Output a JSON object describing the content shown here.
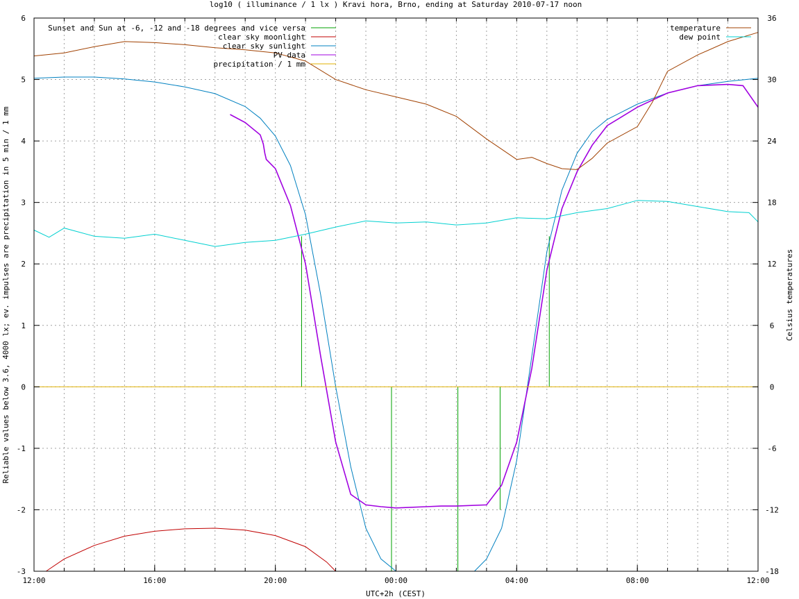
{
  "chart_data": {
    "type": "line",
    "title": "log10 ( illuminance / 1 lx ) Kravi hora, Brno, ending at Saturday 2010-07-17 noon",
    "xlabel": "UTC+2h (CEST)",
    "ylabel": "Reliable values below 3.6, 4000 lx; ev. impulses are precipitation in 5 min / 1 mm",
    "y2label": "Celsius temperatures",
    "xlim": [
      0,
      24
    ],
    "ylim": [
      -3,
      6
    ],
    "y2lim": [
      -18,
      36
    ],
    "x_ticks": [
      {
        "v": 0,
        "label": "12:00"
      },
      {
        "v": 4,
        "label": "16:00"
      },
      {
        "v": 8,
        "label": "20:00"
      },
      {
        "v": 12,
        "label": "00:00"
      },
      {
        "v": 16,
        "label": "04:00"
      },
      {
        "v": 20,
        "label": "08:00"
      },
      {
        "v": 24,
        "label": "12:00"
      }
    ],
    "y_ticks": [
      {
        "v": 6,
        "label": "6"
      },
      {
        "v": 5,
        "label": "5"
      },
      {
        "v": 4,
        "label": "4"
      },
      {
        "v": 3,
        "label": "3"
      },
      {
        "v": 2,
        "label": "2"
      },
      {
        "v": 1,
        "label": "1"
      },
      {
        "v": 0,
        "label": "0"
      },
      {
        "v": -1,
        "label": "-1"
      },
      {
        "v": -2,
        "label": "-2"
      },
      {
        "v": -3,
        "label": "-3"
      }
    ],
    "y2_ticks": [
      {
        "v": 36,
        "label": "36"
      },
      {
        "v": 30,
        "label": "30"
      },
      {
        "v": 24,
        "label": "24"
      },
      {
        "v": 18,
        "label": "18"
      },
      {
        "v": 12,
        "label": "12"
      },
      {
        "v": 6,
        "label": "6"
      },
      {
        "v": 0,
        "label": "0"
      },
      {
        "v": -6,
        "label": "-6"
      },
      {
        "v": -12,
        "label": "-12"
      },
      {
        "v": -18,
        "label": "-18"
      }
    ],
    "grid": true,
    "legend_left": [
      {
        "name": "Sunset and Sun at -6, -12 and -18 degrees and vice versa",
        "color": "#00a000"
      },
      {
        "name": "clear sky moonlight",
        "color": "#c00000"
      },
      {
        "name": "clear sky sunlight",
        "color": "#0080c0"
      },
      {
        "name": "PV data",
        "color": "#a000e0"
      },
      {
        "name": "precipitation / 1 mm",
        "color": "#e0b000"
      }
    ],
    "legend_right": [
      {
        "name": "temperature",
        "color": "#a04000"
      },
      {
        "name": "dew point",
        "color": "#00d0d0"
      }
    ],
    "series": [
      {
        "name": "Sunset and Sun at -6, -12 and -18 degrees and vice versa",
        "color": "#00a000",
        "axis": "y1",
        "type": "impulse",
        "points": [
          [
            8.87,
            2.45
          ],
          [
            9.57,
            0
          ],
          [
            10.45,
            0
          ],
          [
            11.85,
            -3
          ],
          [
            14.05,
            -3
          ],
          [
            15.45,
            -2
          ],
          [
            16.42,
            0
          ],
          [
            17.08,
            2.45
          ]
        ]
      },
      {
        "name": "clear sky moonlight",
        "color": "#c00000",
        "axis": "y1",
        "points": [
          [
            0.4,
            -3.0
          ],
          [
            1,
            -2.8
          ],
          [
            2,
            -2.58
          ],
          [
            3,
            -2.43
          ],
          [
            4,
            -2.35
          ],
          [
            5,
            -2.31
          ],
          [
            6,
            -2.3
          ],
          [
            7,
            -2.33
          ],
          [
            8,
            -2.42
          ],
          [
            9,
            -2.6
          ],
          [
            9.7,
            -2.85
          ],
          [
            10,
            -3.0
          ]
        ]
      },
      {
        "name": "clear sky sunlight",
        "color": "#0080c0",
        "axis": "y1",
        "points": [
          [
            0,
            5.02
          ],
          [
            1,
            5.04
          ],
          [
            2,
            5.04
          ],
          [
            3,
            5.01
          ],
          [
            4,
            4.96
          ],
          [
            5,
            4.88
          ],
          [
            6,
            4.77
          ],
          [
            7,
            4.56
          ],
          [
            7.5,
            4.37
          ],
          [
            8,
            4.08
          ],
          [
            8.5,
            3.6
          ],
          [
            9,
            2.8
          ],
          [
            9.5,
            1.5
          ],
          [
            10,
            0.0
          ],
          [
            10.5,
            -1.3
          ],
          [
            11,
            -2.3
          ],
          [
            11.5,
            -2.8
          ],
          [
            12,
            -3.0
          ],
          [
            14.6,
            -3.0
          ],
          [
            15,
            -2.8
          ],
          [
            15.5,
            -2.3
          ],
          [
            16,
            -1.2
          ],
          [
            16.5,
            0.5
          ],
          [
            17,
            2.2
          ],
          [
            17.5,
            3.2
          ],
          [
            18,
            3.8
          ],
          [
            18.5,
            4.15
          ],
          [
            19,
            4.35
          ],
          [
            20,
            4.6
          ],
          [
            21,
            4.78
          ],
          [
            22,
            4.9
          ],
          [
            23,
            4.97
          ],
          [
            24,
            5.02
          ]
        ]
      },
      {
        "name": "PV data",
        "color": "#a000e0",
        "axis": "y1",
        "points": [
          [
            6.5,
            4.43
          ],
          [
            7,
            4.3
          ],
          [
            7.5,
            4.1
          ],
          [
            7.6,
            3.95
          ],
          [
            7.65,
            3.8
          ],
          [
            7.7,
            3.7
          ],
          [
            8,
            3.55
          ],
          [
            8.5,
            2.95
          ],
          [
            9,
            2.0
          ],
          [
            9.5,
            0.5
          ],
          [
            10,
            -0.9
          ],
          [
            10.5,
            -1.75
          ],
          [
            11,
            -1.92
          ],
          [
            11.5,
            -1.95
          ],
          [
            12,
            -1.97
          ],
          [
            13,
            -1.95
          ],
          [
            13.5,
            -1.94
          ],
          [
            14,
            -1.94
          ],
          [
            15,
            -1.92
          ],
          [
            15.5,
            -1.6
          ],
          [
            16,
            -0.9
          ],
          [
            16.5,
            0.3
          ],
          [
            17,
            1.9
          ],
          [
            17.5,
            2.9
          ],
          [
            18,
            3.5
          ],
          [
            18.5,
            3.93
          ],
          [
            19,
            4.25
          ],
          [
            20,
            4.55
          ],
          [
            21,
            4.78
          ],
          [
            22,
            4.9
          ],
          [
            23,
            4.92
          ],
          [
            23.5,
            4.9
          ],
          [
            24,
            4.55
          ]
        ]
      },
      {
        "name": "precipitation / 1 mm",
        "color": "#e0b000",
        "axis": "y1",
        "points": [
          [
            0,
            0
          ],
          [
            24,
            0
          ]
        ]
      },
      {
        "name": "temperature",
        "color": "#a04000",
        "axis": "y2",
        "points": [
          [
            0,
            32.3
          ],
          [
            1,
            32.6
          ],
          [
            2,
            33.2
          ],
          [
            3,
            33.7
          ],
          [
            4,
            33.6
          ],
          [
            5,
            33.4
          ],
          [
            6,
            33.1
          ],
          [
            7,
            32.9
          ],
          [
            8,
            32.6
          ],
          [
            9,
            31.8
          ],
          [
            10,
            30.0
          ],
          [
            11,
            29.0
          ],
          [
            12,
            28.3
          ],
          [
            13,
            27.6
          ],
          [
            14,
            26.4
          ],
          [
            15,
            24.2
          ],
          [
            15.5,
            23.2
          ],
          [
            16,
            22.2
          ],
          [
            16.5,
            22.4
          ],
          [
            17,
            21.8
          ],
          [
            17.5,
            21.3
          ],
          [
            18,
            21.2
          ],
          [
            18.5,
            22.3
          ],
          [
            19,
            23.8
          ],
          [
            20,
            25.4
          ],
          [
            20.5,
            27.8
          ],
          [
            21,
            30.8
          ],
          [
            22,
            32.4
          ],
          [
            23,
            33.7
          ],
          [
            24,
            34.6
          ]
        ]
      },
      {
        "name": "dew point",
        "color": "#00d0d0",
        "axis": "y2",
        "points": [
          [
            0,
            15.3
          ],
          [
            0.5,
            14.6
          ],
          [
            1,
            15.5
          ],
          [
            2,
            14.7
          ],
          [
            3,
            14.5
          ],
          [
            4,
            14.9
          ],
          [
            5,
            14.3
          ],
          [
            6,
            13.7
          ],
          [
            7,
            14.1
          ],
          [
            8,
            14.3
          ],
          [
            9,
            14.9
          ],
          [
            10,
            15.6
          ],
          [
            11,
            16.2
          ],
          [
            12,
            16.0
          ],
          [
            13,
            16.1
          ],
          [
            14,
            15.8
          ],
          [
            15,
            16.0
          ],
          [
            16,
            16.5
          ],
          [
            17,
            16.4
          ],
          [
            18,
            17.0
          ],
          [
            19,
            17.4
          ],
          [
            20,
            18.2
          ],
          [
            21,
            18.1
          ],
          [
            22,
            17.6
          ],
          [
            23,
            17.1
          ],
          [
            23.7,
            17.0
          ],
          [
            24,
            16.1
          ]
        ]
      }
    ]
  }
}
